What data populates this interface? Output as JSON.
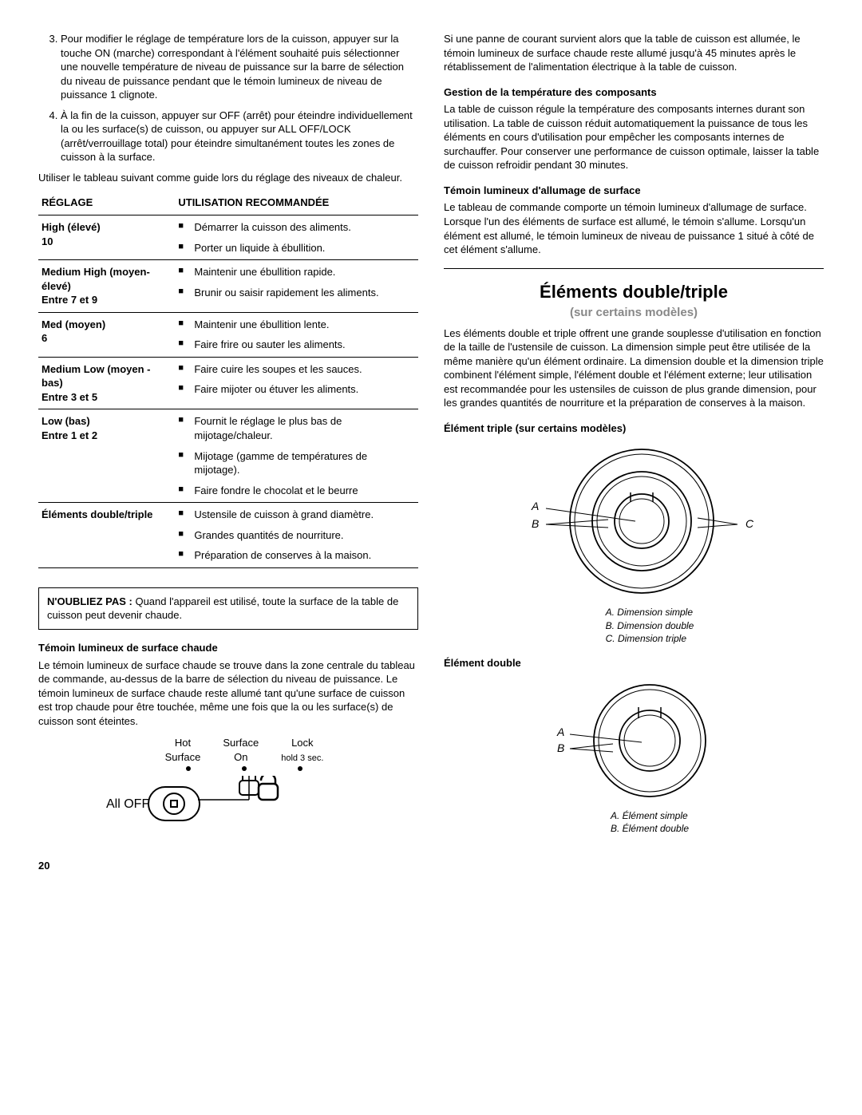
{
  "left": {
    "step3_num": "3.",
    "step3": "Pour modifier le réglage de température lors de la cuisson, appuyer sur la touche ON (marche) correspondant à l'élément souhaité puis sélectionner une nouvelle température de niveau de puissance sur la barre de sélection du niveau de puissance pendant que le témoin lumineux de niveau de puissance 1 clignote.",
    "step4_num": "4.",
    "step4": "À la fin de la cuisson, appuyer sur OFF (arrêt) pour éteindre individuellement la ou les surface(s) de cuisson, ou appuyer sur ALL OFF/LOCK (arrêt/verrouillage total) pour éteindre simultanément toutes les zones de cuisson à la surface.",
    "tableIntro": "Utiliser le tableau suivant comme guide lors du réglage des niveaux de chaleur.",
    "th1": "RÉGLAGE",
    "th2": "UTILISATION RECOMMANDÉE",
    "rows": [
      {
        "label": "High (élevé)\n10",
        "items": [
          "Démarrer la cuisson des aliments.",
          "Porter un liquide à ébullition."
        ]
      },
      {
        "label": "Medium High (moyen-élevé)\nEntre 7 et 9",
        "items": [
          "Maintenir une ébullition rapide.",
          "Brunir ou saisir rapidement les aliments."
        ]
      },
      {
        "label": "Med (moyen)\n6",
        "items": [
          "Maintenir une ébullition lente.",
          "Faire frire ou sauter les aliments."
        ]
      },
      {
        "label": "Medium Low (moyen - bas)\nEntre 3 et 5",
        "items": [
          "Faire cuire les soupes et les sauces.",
          "Faire mijoter ou étuver les aliments."
        ]
      },
      {
        "label": "Low (bas)\nEntre 1 et 2",
        "items": [
          "Fournit le réglage le plus bas de mijotage/chaleur.",
          "Mijotage (gamme de températures de mijotage).",
          "Faire fondre le chocolat et le beurre"
        ]
      },
      {
        "label": "Éléments double/triple",
        "items": [
          "Ustensile de cuisson à grand diamètre.",
          "Grandes quantités de nourriture.",
          "Préparation de conserves à la maison."
        ]
      }
    ],
    "notice_bold": "N'OUBLIEZ PAS : ",
    "notice_rest": "Quand l'appareil est utilisé, toute la surface de la table de cuisson peut devenir chaude.",
    "hot_h": "Témoin lumineux de surface chaude",
    "hot_p": "Le témoin lumineux de surface chaude se trouve dans la zone centrale du tableau de commande, au-dessus de la barre de sélection du niveau de puissance. Le témoin lumineux de surface chaude reste allumé tant qu'une surface de cuisson est trop chaude pour être touchée, même une fois que la ou les surface(s) de cuisson sont éteintes.",
    "ind": {
      "hot1": "Hot",
      "hot2": "Surface",
      "surf1": "Surface",
      "surf2": "On",
      "lock1": "Lock",
      "lock2": "hold 3 sec.",
      "alloff": "All OFF"
    },
    "pageNum": "20"
  },
  "right": {
    "power_p": "Si une panne de courant survient alors que la table de cuisson est allumée, le témoin lumineux de surface chaude reste allumé jusqu'à 45 minutes après le rétablissement de l'alimentation électrique à la table de cuisson.",
    "temp_h": "Gestion de la température des composants",
    "temp_p": "La table de cuisson régule la température des composants internes durant son utilisation. La table de cuisson réduit automatiquement la puissance de tous les éléments en cours d'utilisation pour empêcher les composants internes de surchauffer. Pour conserver une performance de cuisson optimale, laisser la table de cuisson refroidir pendant 30 minutes.",
    "light_h": "Témoin lumineux d'allumage de surface",
    "light_p": "Le tableau de commande comporte un témoin lumineux d'allumage de surface. Lorsque l'un des éléments de surface est allumé, le témoin s'allume. Lorsqu'un élément est allumé, le témoin lumineux de niveau de puissance 1 situé à côté de cet élément s'allume.",
    "sec_title": "Éléments double/triple",
    "sec_sub": "(sur certains modèles)",
    "sec_p": "Les éléments double et triple offrent une grande souplesse d'utilisation en fonction de la taille de l'ustensile de cuisson. La dimension simple peut être utilisée de la même manière qu'un élément ordinaire. La dimension double et la dimension triple combinent l'élément simple, l'élément double et l'élément externe; leur utilisation est recommandée pour les ustensiles de cuisson de plus grande dimension, pour les grandes quantités de nourriture et la préparation de conserves à la maison.",
    "triple_h": "Élément triple (sur certains modèles)",
    "triple_cap": "A. Dimension simple\nB. Dimension double\nC. Dimension triple",
    "double_h": "Élément double",
    "double_cap": "A. Élément simple\nB. Élément double"
  }
}
